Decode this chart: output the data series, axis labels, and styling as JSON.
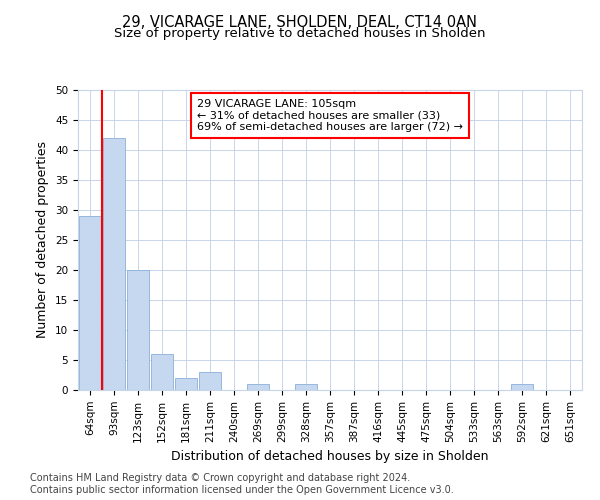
{
  "title": "29, VICARAGE LANE, SHOLDEN, DEAL, CT14 0AN",
  "subtitle": "Size of property relative to detached houses in Sholden",
  "xlabel": "Distribution of detached houses by size in Sholden",
  "ylabel": "Number of detached properties",
  "bin_labels": [
    "64sqm",
    "93sqm",
    "123sqm",
    "152sqm",
    "181sqm",
    "211sqm",
    "240sqm",
    "269sqm",
    "299sqm",
    "328sqm",
    "357sqm",
    "387sqm",
    "416sqm",
    "445sqm",
    "475sqm",
    "504sqm",
    "533sqm",
    "563sqm",
    "592sqm",
    "621sqm",
    "651sqm"
  ],
  "bar_values": [
    29,
    42,
    20,
    6,
    2,
    3,
    0,
    1,
    0,
    1,
    0,
    0,
    0,
    0,
    0,
    0,
    0,
    0,
    1,
    0,
    0
  ],
  "bar_color": "#c5d8f0",
  "bar_edge_color": "#8ab0d8",
  "vline_x": 0.5,
  "annotation_text": "29 VICARAGE LANE: 105sqm\n← 31% of detached houses are smaller (33)\n69% of semi-detached houses are larger (72) →",
  "annotation_box_color": "white",
  "annotation_box_edge_color": "red",
  "vline_color": "red",
  "ylim": [
    0,
    50
  ],
  "yticks": [
    0,
    5,
    10,
    15,
    20,
    25,
    30,
    35,
    40,
    45,
    50
  ],
  "footer_text": "Contains HM Land Registry data © Crown copyright and database right 2024.\nContains public sector information licensed under the Open Government Licence v3.0.",
  "bg_color": "#ffffff",
  "plot_bg_color": "#ffffff",
  "grid_color": "#c8d4e8",
  "title_fontsize": 10.5,
  "subtitle_fontsize": 9.5,
  "label_fontsize": 9,
  "tick_fontsize": 7.5,
  "annotation_fontsize": 8,
  "footer_fontsize": 7
}
